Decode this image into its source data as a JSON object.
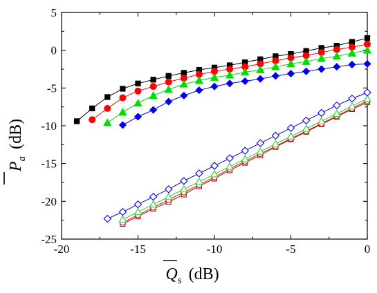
{
  "chart_data": {
    "type": "line",
    "title": "",
    "xlabel": {
      "symbol": "Q",
      "sub": "s",
      "unit": "(dB)"
    },
    "ylabel": {
      "symbol": "P",
      "sub": "a",
      "unit": "(dB)"
    },
    "xlim": [
      -20,
      0
    ],
    "ylim": [
      -25,
      5
    ],
    "xticks": [
      -20,
      -15,
      -10,
      -5,
      0
    ],
    "yticks": [
      -25,
      -20,
      -15,
      -10,
      -5,
      0,
      5
    ],
    "xtick_labels": [
      "-20",
      "-15",
      "-10",
      "-5",
      "0"
    ],
    "ytick_labels": [
      "-25",
      "-20",
      "-15",
      "-10",
      "-5",
      "0",
      "5"
    ],
    "grid": false,
    "legend": "none",
    "series": [
      {
        "marker": "square",
        "filled": true,
        "color": "#000000",
        "x": [
          -19,
          -18,
          -17,
          -16,
          -15,
          -14,
          -13,
          -12,
          -11,
          -10,
          -9,
          -8,
          -7,
          -6,
          -5,
          -4,
          -3,
          -2,
          -1,
          0
        ],
        "y": [
          -9.4,
          -7.7,
          -6.2,
          -5.1,
          -4.4,
          -3.9,
          -3.4,
          -3.0,
          -2.6,
          -2.3,
          -2.0,
          -1.6,
          -1.2,
          -0.8,
          -0.5,
          -0.1,
          0.3,
          0.6,
          1.1,
          1.6
        ]
      },
      {
        "marker": "circle",
        "filled": true,
        "color": "#ff0000",
        "x": [
          -18,
          -17,
          -16,
          -15,
          -14,
          -13,
          -12,
          -11,
          -10,
          -9,
          -8,
          -7,
          -6,
          -5,
          -4,
          -3,
          -2,
          -1,
          0
        ],
        "y": [
          -9.2,
          -7.7,
          -6.3,
          -5.4,
          -4.8,
          -4.2,
          -3.7,
          -3.2,
          -2.8,
          -2.5,
          -2.2,
          -1.8,
          -1.4,
          -1.0,
          -0.7,
          -0.3,
          0.1,
          0.4,
          0.8
        ]
      },
      {
        "marker": "triangle-up",
        "filled": true,
        "color": "#00dd00",
        "x": [
          -17,
          -16,
          -15,
          -14,
          -13,
          -12,
          -11,
          -10,
          -9,
          -8,
          -7,
          -6,
          -5,
          -4,
          -3,
          -2,
          -1,
          0
        ],
        "y": [
          -9.6,
          -8.2,
          -7.0,
          -6.0,
          -5.2,
          -4.5,
          -4.0,
          -3.6,
          -3.3,
          -2.9,
          -2.6,
          -2.2,
          -1.8,
          -1.5,
          -1.1,
          -0.8,
          -0.4,
          0.0
        ]
      },
      {
        "marker": "diamond",
        "filled": true,
        "color": "#0000ee",
        "x": [
          -16,
          -15,
          -14,
          -13,
          -12,
          -11,
          -10,
          -9,
          -8,
          -7,
          -6,
          -5,
          -4,
          -3,
          -2,
          -1,
          0
        ],
        "y": [
          -9.9,
          -8.8,
          -7.9,
          -6.8,
          -6.0,
          -5.3,
          -4.8,
          -4.4,
          -4.1,
          -3.8,
          -3.4,
          -3.1,
          -2.8,
          -2.5,
          -2.2,
          -1.9,
          -1.8
        ]
      },
      {
        "marker": "square",
        "filled": false,
        "color": "#8b1a1a",
        "x": [
          -16,
          -15,
          -14,
          -13,
          -12,
          -11,
          -10,
          -9,
          -8,
          -7,
          -6,
          -5,
          -4,
          -3,
          -2,
          -1,
          0
        ],
        "y": [
          -23.0,
          -22.0,
          -21.0,
          -20.1,
          -19.1,
          -18.0,
          -17.0,
          -15.9,
          -14.9,
          -13.9,
          -12.8,
          -11.8,
          -10.8,
          -9.8,
          -8.8,
          -7.8,
          -6.9
        ]
      },
      {
        "marker": "circle",
        "filled": false,
        "color": "#ff0000",
        "x": [
          -16,
          -15,
          -14,
          -13,
          -12,
          -11,
          -10,
          -9,
          -8,
          -7,
          -6,
          -5,
          -4,
          -3,
          -2,
          -1,
          0
        ],
        "y": [
          -22.8,
          -21.8,
          -20.8,
          -19.8,
          -18.8,
          -17.8,
          -16.8,
          -15.7,
          -14.7,
          -13.7,
          -12.7,
          -11.7,
          -10.7,
          -9.7,
          -8.7,
          -7.7,
          -6.7
        ]
      },
      {
        "marker": "triangle-up",
        "filled": false,
        "color": "#33cc33",
        "x": [
          -16,
          -15,
          -14,
          -13,
          -12,
          -11,
          -10,
          -9,
          -8,
          -7,
          -6,
          -5,
          -4,
          -3,
          -2,
          -1,
          0
        ],
        "y": [
          -22.4,
          -21.4,
          -20.4,
          -19.4,
          -18.4,
          -17.4,
          -16.4,
          -15.4,
          -14.4,
          -13.4,
          -12.4,
          -11.4,
          -10.4,
          -9.4,
          -8.4,
          -7.4,
          -6.4
        ]
      },
      {
        "marker": "diamond",
        "filled": false,
        "color": "#0000ee",
        "x": [
          -17,
          -16,
          -15,
          -14,
          -13,
          -12,
          -11,
          -10,
          -9,
          -8,
          -7,
          -6,
          -5,
          -4,
          -3,
          -2,
          -1,
          0
        ],
        "y": [
          -22.3,
          -21.4,
          -20.4,
          -19.4,
          -18.4,
          -17.3,
          -16.3,
          -15.3,
          -14.3,
          -13.3,
          -12.3,
          -11.3,
          -10.3,
          -9.3,
          -8.3,
          -7.3,
          -6.4,
          -5.6
        ]
      }
    ]
  }
}
